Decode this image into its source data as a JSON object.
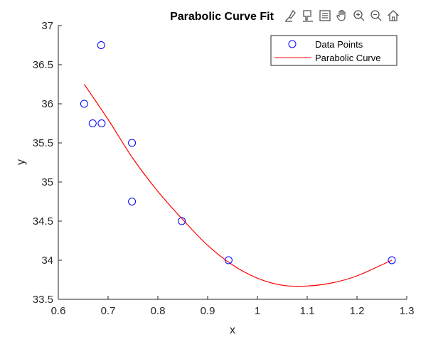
{
  "colors": {
    "points": "#0000ff",
    "curve": "#ff0000",
    "axis": "#262626"
  },
  "toolbar": {
    "items": [
      {
        "name": "brush-data-icon"
      },
      {
        "name": "data-tips-icon"
      },
      {
        "name": "legend-icon"
      },
      {
        "name": "pan-icon"
      },
      {
        "name": "zoom-in-icon"
      },
      {
        "name": "zoom-out-icon"
      },
      {
        "name": "home-restore-icon"
      }
    ]
  },
  "chart_data": {
    "type": "scatter",
    "title": "Parabolic Curve Fit",
    "xlabel": "x",
    "ylabel": "y",
    "xlim": [
      0.6,
      1.3
    ],
    "ylim": [
      33.5,
      37
    ],
    "xticks": [
      0.6,
      0.7,
      0.8,
      0.9,
      1.0,
      1.1,
      1.2,
      1.3
    ],
    "xtick_labels": [
      "0.6",
      "0.7",
      "0.8",
      "0.9",
      "1",
      "1.1",
      "1.2",
      "1.3"
    ],
    "yticks": [
      33.5,
      34,
      34.5,
      35,
      35.5,
      36,
      36.5,
      37
    ],
    "ytick_labels": [
      "33.5",
      "34",
      "34.5",
      "35",
      "35.5",
      "36",
      "36.5",
      "37"
    ],
    "grid": false,
    "legend_position": "top-right",
    "series": [
      {
        "name": "Data Points",
        "kind": "markers",
        "marker": "circle",
        "x": [
          0.652,
          0.669,
          0.686,
          0.687,
          0.748,
          0.748,
          0.848,
          0.942,
          1.27
        ],
        "y": [
          36.0,
          35.75,
          36.75,
          35.75,
          35.5,
          34.75,
          34.5,
          34.0,
          34.0
        ]
      },
      {
        "name": "Parabolic Curve",
        "kind": "line",
        "x": [
          0.652,
          0.7,
          0.75,
          0.8,
          0.85,
          0.9,
          0.95,
          1.0,
          1.05,
          1.1,
          1.15,
          1.2,
          1.27
        ],
        "y": [
          36.25,
          35.8,
          35.3,
          34.88,
          34.52,
          34.19,
          33.94,
          33.77,
          33.68,
          33.67,
          33.71,
          33.8,
          34.0
        ]
      }
    ]
  }
}
